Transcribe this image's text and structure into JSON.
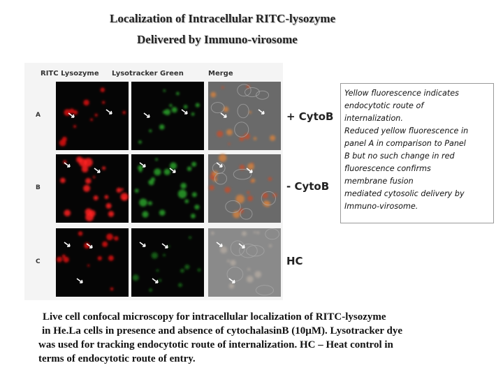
{
  "title": {
    "line1": "Localization of Intracellular RITC-lysozyme",
    "line2": "Delivered by Immuno-virosome"
  },
  "figure": {
    "column_headers": [
      "RITC Lysozyme",
      "Lysotracker Green",
      "Merge"
    ],
    "row_labels": [
      "A",
      "B",
      "C"
    ],
    "conditions": [
      "+ CytoB",
      "- CytoB",
      "HC"
    ]
  },
  "note": {
    "lines": [
      "Yellow fluorescence indicates",
      "endocytotic route of",
      "internalization.",
      "Reduced yellow fluorescence in",
      "panel A in comparison to Panel",
      "B but no such change in red",
      "fluorescence confirms",
      "membrane fusion",
      "mediated cytosolic delivery by",
      "Immuno-virosome."
    ]
  },
  "caption": {
    "lines": [
      "Live cell confocal microscopy for intracellular localization of RITC-lysozyme",
      "in He.La cells in presence and absence of cytochalasinB (10µM). Lysotracker dye",
      "was used for tracking endocytotic route of  internalization. HC – Heat control in",
      "terms of endocytotic route of entry."
    ]
  }
}
